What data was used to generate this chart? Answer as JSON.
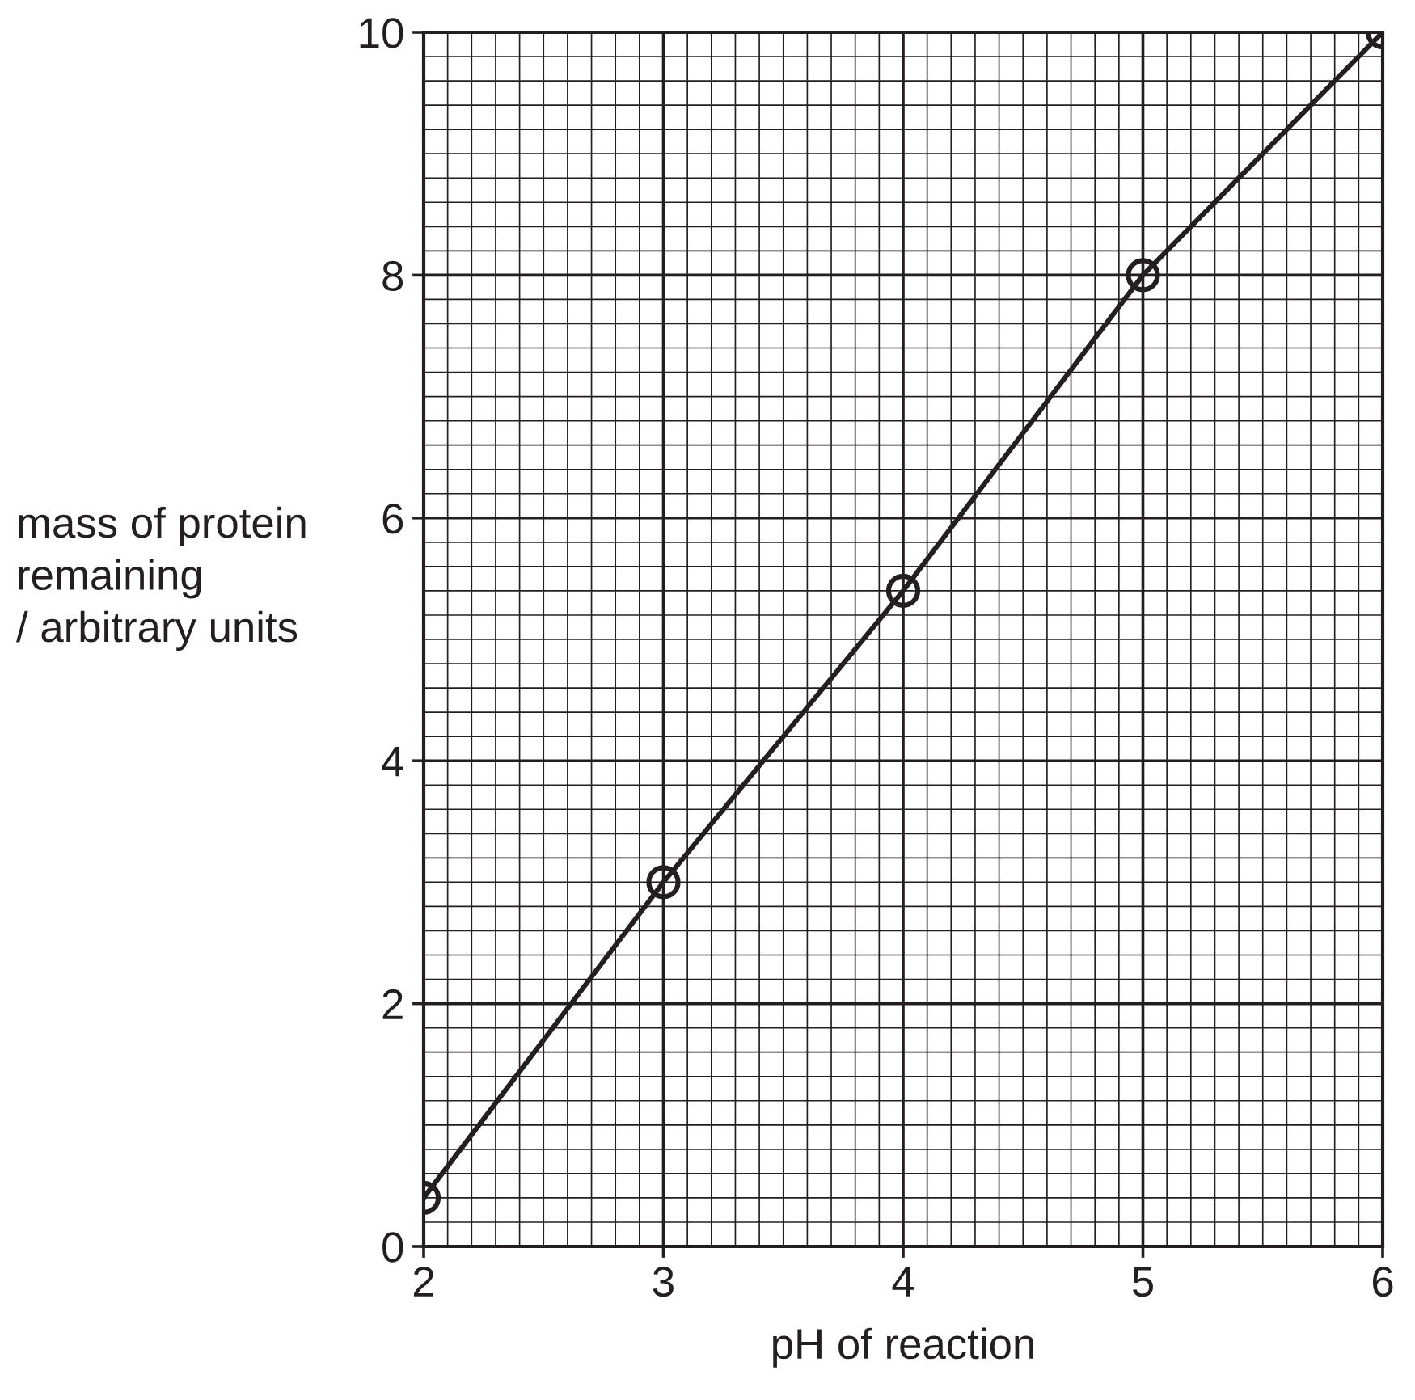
{
  "chart_data": {
    "type": "line",
    "xlabel": "pH of reaction",
    "ylabel": "mass of protein\nremaining\n/ arbitrary units",
    "x": [
      2,
      3,
      4,
      5,
      6
    ],
    "series": [
      {
        "color": "#231f20",
        "values": [
          0.4,
          3.0,
          5.4,
          8.0,
          10.0
        ]
      }
    ],
    "xlim": [
      2,
      6
    ],
    "ylim": [
      0,
      10
    ],
    "xticks": [
      2,
      3,
      4,
      5,
      6
    ],
    "yticks": [
      0,
      2,
      4,
      6,
      8,
      10
    ],
    "grid": true,
    "marker": "circle",
    "line_style": "solid"
  }
}
